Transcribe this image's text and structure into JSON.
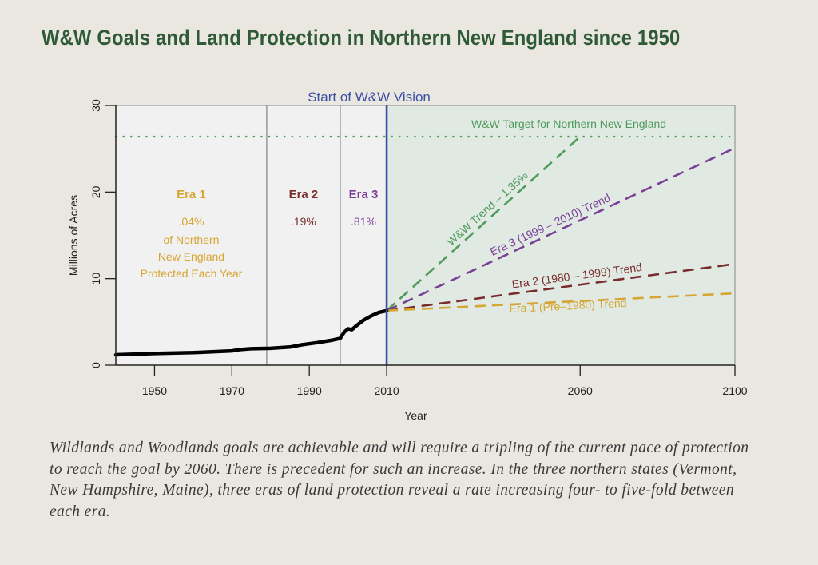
{
  "title": "W&W Goals and Land Protection in Northern New England since 1950",
  "caption": "Wildlands and Woodlands goals are achievable and will require a tripling of the current pace of protection to reach the goal by 2060. There is precedent for such an increase. In the three northern states (Vermont, New Hampshire, Maine), three eras of land protection reveal a rate increasing four- to five-fold between each era.",
  "colors": {
    "title": "#2f5a37",
    "era1": "#d6a533",
    "era2": "#7a2c2c",
    "era3": "#7b3f98",
    "ww": "#4f9a5c",
    "vision_line": "#3d4fa3",
    "history_line": "#000000",
    "projection_shade": "#e0eae3",
    "history_shade": "#f1f1f1"
  },
  "chart_data": {
    "type": "line",
    "title": "",
    "xlabel": "Year",
    "ylabel": "Millions of Acres",
    "xlim": [
      1940,
      2100
    ],
    "ylim": [
      0,
      30
    ],
    "x_ticks": [
      1950,
      1970,
      1990,
      2010,
      2060,
      2100
    ],
    "y_ticks": [
      0,
      10,
      20,
      30
    ],
    "grid": false,
    "vision_marker": {
      "x": 2010,
      "label": "Start of W&W Vision"
    },
    "era_boundaries": [
      1979,
      1998
    ],
    "target": {
      "y": 26.4,
      "label": "W&W Target for Northern New England"
    },
    "history": {
      "name": "Protected land",
      "x": [
        1940,
        1950,
        1960,
        1970,
        1972,
        1975,
        1980,
        1985,
        1988,
        1992,
        1996,
        1998,
        1999,
        2000,
        2001,
        2002,
        2004,
        2006,
        2008,
        2010
      ],
      "y": [
        1.2,
        1.35,
        1.45,
        1.65,
        1.8,
        1.9,
        1.95,
        2.1,
        2.35,
        2.6,
        2.9,
        3.1,
        3.8,
        4.2,
        4.1,
        4.5,
        5.2,
        5.7,
        6.1,
        6.3
      ]
    },
    "eras": [
      {
        "name": "Era 1",
        "rate": ".04%",
        "description": [
          "of Northern",
          "New England",
          "Protected Each Year"
        ]
      },
      {
        "name": "Era 2",
        "rate": ".19%"
      },
      {
        "name": "Era 3",
        "rate": ".81%"
      }
    ],
    "series": [
      {
        "name": "W&W Trend – 1.35%",
        "x": [
          2010,
          2060
        ],
        "y": [
          6.3,
          26.4
        ]
      },
      {
        "name": "Era 3 (1999 – 2010) Trend",
        "x": [
          2010,
          2100
        ],
        "y": [
          6.3,
          25.1
        ]
      },
      {
        "name": "Era 2 (1980 – 1999) Trend",
        "x": [
          2010,
          2100
        ],
        "y": [
          6.3,
          11.7
        ]
      },
      {
        "name": "Era 1 (Pre–1980) Trend",
        "x": [
          2010,
          2100
        ],
        "y": [
          6.3,
          8.3
        ]
      }
    ]
  }
}
